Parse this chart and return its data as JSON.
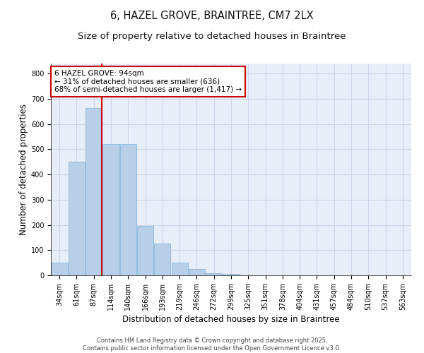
{
  "title_line1": "6, HAZEL GROVE, BRAINTREE, CM7 2LX",
  "title_line2": "Size of property relative to detached houses in Braintree",
  "xlabel": "Distribution of detached houses by size in Braintree",
  "ylabel": "Number of detached properties",
  "categories": [
    "34sqm",
    "61sqm",
    "87sqm",
    "114sqm",
    "140sqm",
    "166sqm",
    "193sqm",
    "219sqm",
    "246sqm",
    "272sqm",
    "299sqm",
    "325sqm",
    "351sqm",
    "378sqm",
    "404sqm",
    "431sqm",
    "457sqm",
    "484sqm",
    "510sqm",
    "537sqm",
    "563sqm"
  ],
  "bar_values": [
    50,
    450,
    665,
    520,
    520,
    197,
    127,
    50,
    25,
    8,
    7,
    0,
    0,
    0,
    0,
    0,
    0,
    0,
    0,
    0,
    0
  ],
  "bar_color": "#b8cfe8",
  "bar_edgecolor": "#7aafd4",
  "red_line_color": "#cc0000",
  "red_line_x": 2.47,
  "annotation_text": "6 HAZEL GROVE: 94sqm\n← 31% of detached houses are smaller (636)\n68% of semi-detached houses are larger (1,417) →",
  "annotation_box_facecolor": "#ffffff",
  "annotation_box_edgecolor": "#cc0000",
  "ylim": [
    0,
    840
  ],
  "yticks": [
    0,
    100,
    200,
    300,
    400,
    500,
    600,
    700,
    800
  ],
  "grid_color": "#ccd6e8",
  "background_color": "#e8eef8",
  "footer_text": "Contains HM Land Registry data © Crown copyright and database right 2025.\nContains public sector information licensed under the Open Government Licence v3.0.",
  "title_fontsize": 10.5,
  "subtitle_fontsize": 9.5,
  "ylabel_fontsize": 8.5,
  "xlabel_fontsize": 8.5,
  "tick_fontsize": 7,
  "annotation_fontsize": 7.5,
  "footer_fontsize": 6
}
